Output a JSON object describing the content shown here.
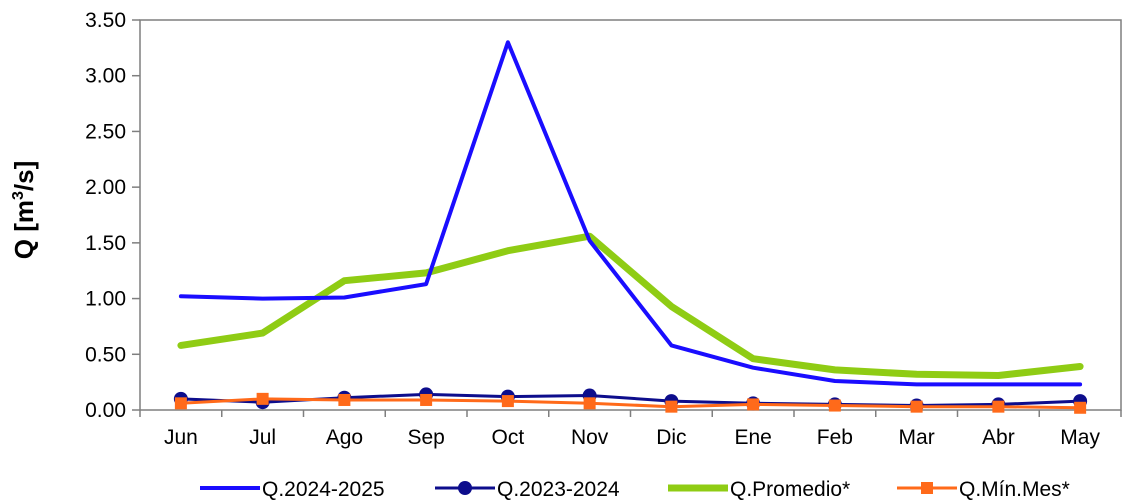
{
  "chart_data": {
    "type": "line",
    "categories": [
      "Jun",
      "Jul",
      "Ago",
      "Sep",
      "Oct",
      "Nov",
      "Dic",
      "Ene",
      "Feb",
      "Mar",
      "Abr",
      "May"
    ],
    "ylabel": "Q [m³/s]",
    "ylabel_main": "Q [m",
    "ylabel_sup": "3",
    "ylabel_tail": "/s]",
    "ylim": [
      0,
      3.5
    ],
    "ytick_labels": [
      "0.00",
      "0.50",
      "1.00",
      "1.50",
      "2.00",
      "2.50",
      "3.00",
      "3.50"
    ],
    "grid": false,
    "legend_position": "bottom",
    "series": [
      {
        "name": "Q.2024-2025",
        "color": "#1a0dff",
        "marker": "none",
        "values": [
          1.02,
          1.0,
          1.01,
          1.13,
          3.3,
          1.52,
          0.58,
          0.38,
          0.26,
          0.23,
          0.23,
          0.23
        ]
      },
      {
        "name": "Q.2023-2024",
        "color": "#0d0d8c",
        "marker": "circle",
        "values": [
          0.1,
          0.07,
          0.11,
          0.14,
          0.12,
          0.13,
          0.08,
          0.06,
          0.05,
          0.04,
          0.05,
          0.08
        ]
      },
      {
        "name": "Q.Promedio*",
        "color": "#8fcc14",
        "marker": "none",
        "values": [
          0.58,
          0.69,
          1.16,
          1.23,
          1.43,
          1.56,
          0.93,
          0.46,
          0.36,
          0.32,
          0.31,
          0.39
        ]
      },
      {
        "name": "Q.Mín.Mes*",
        "color": "#ff6a1a",
        "marker": "square",
        "values": [
          0.06,
          0.1,
          0.09,
          0.09,
          0.08,
          0.06,
          0.03,
          0.05,
          0.04,
          0.03,
          0.03,
          0.02
        ]
      }
    ]
  }
}
